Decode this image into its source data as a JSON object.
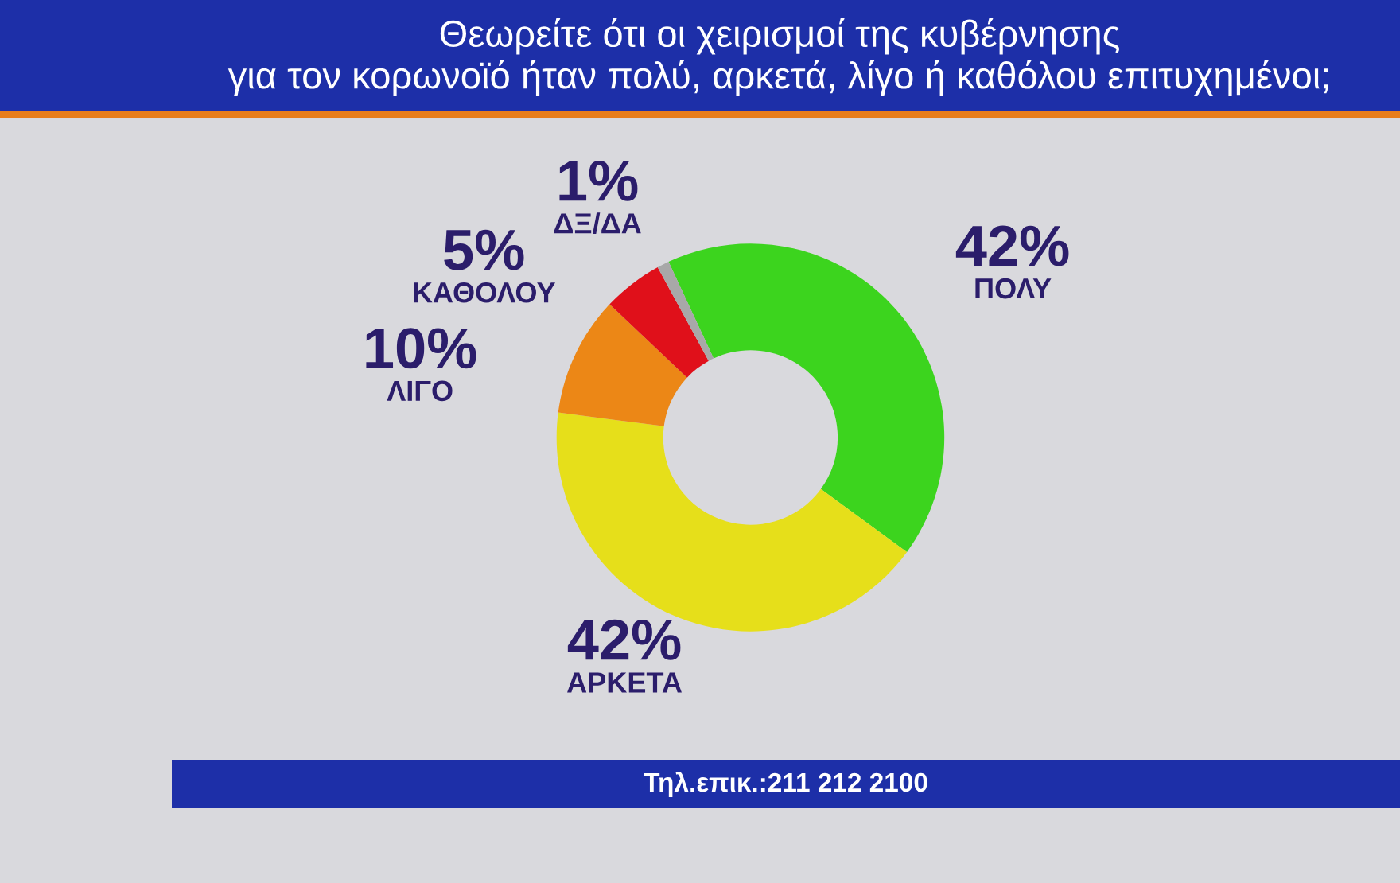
{
  "chart_data": {
    "type": "donut",
    "title": "Θεωρείτε ότι οι χειρισμοί της κυβέρνησης για τον κορωνοϊό ήταν πολύ, αρκετά, λίγο ή καθόλου επιτυχημένοι;",
    "categories": [
      "ΠΟΛΥ",
      "ΑΡΚΕΤΑ",
      "ΛΙΓΟ",
      "ΚΑΘΟΛΟΥ",
      "ΔΞ/ΔΑ"
    ],
    "values": [
      42,
      42,
      10,
      5,
      1
    ],
    "value_labels": [
      "42%",
      "42%",
      "10%",
      "5%",
      "1%"
    ],
    "colors": [
      "#3cd41e",
      "#e6df1a",
      "#ec8716",
      "#e0101a",
      "#a8a8a8"
    ],
    "annotations": [
      "Τηλ.επικ.:211 212 2100"
    ]
  }
}
